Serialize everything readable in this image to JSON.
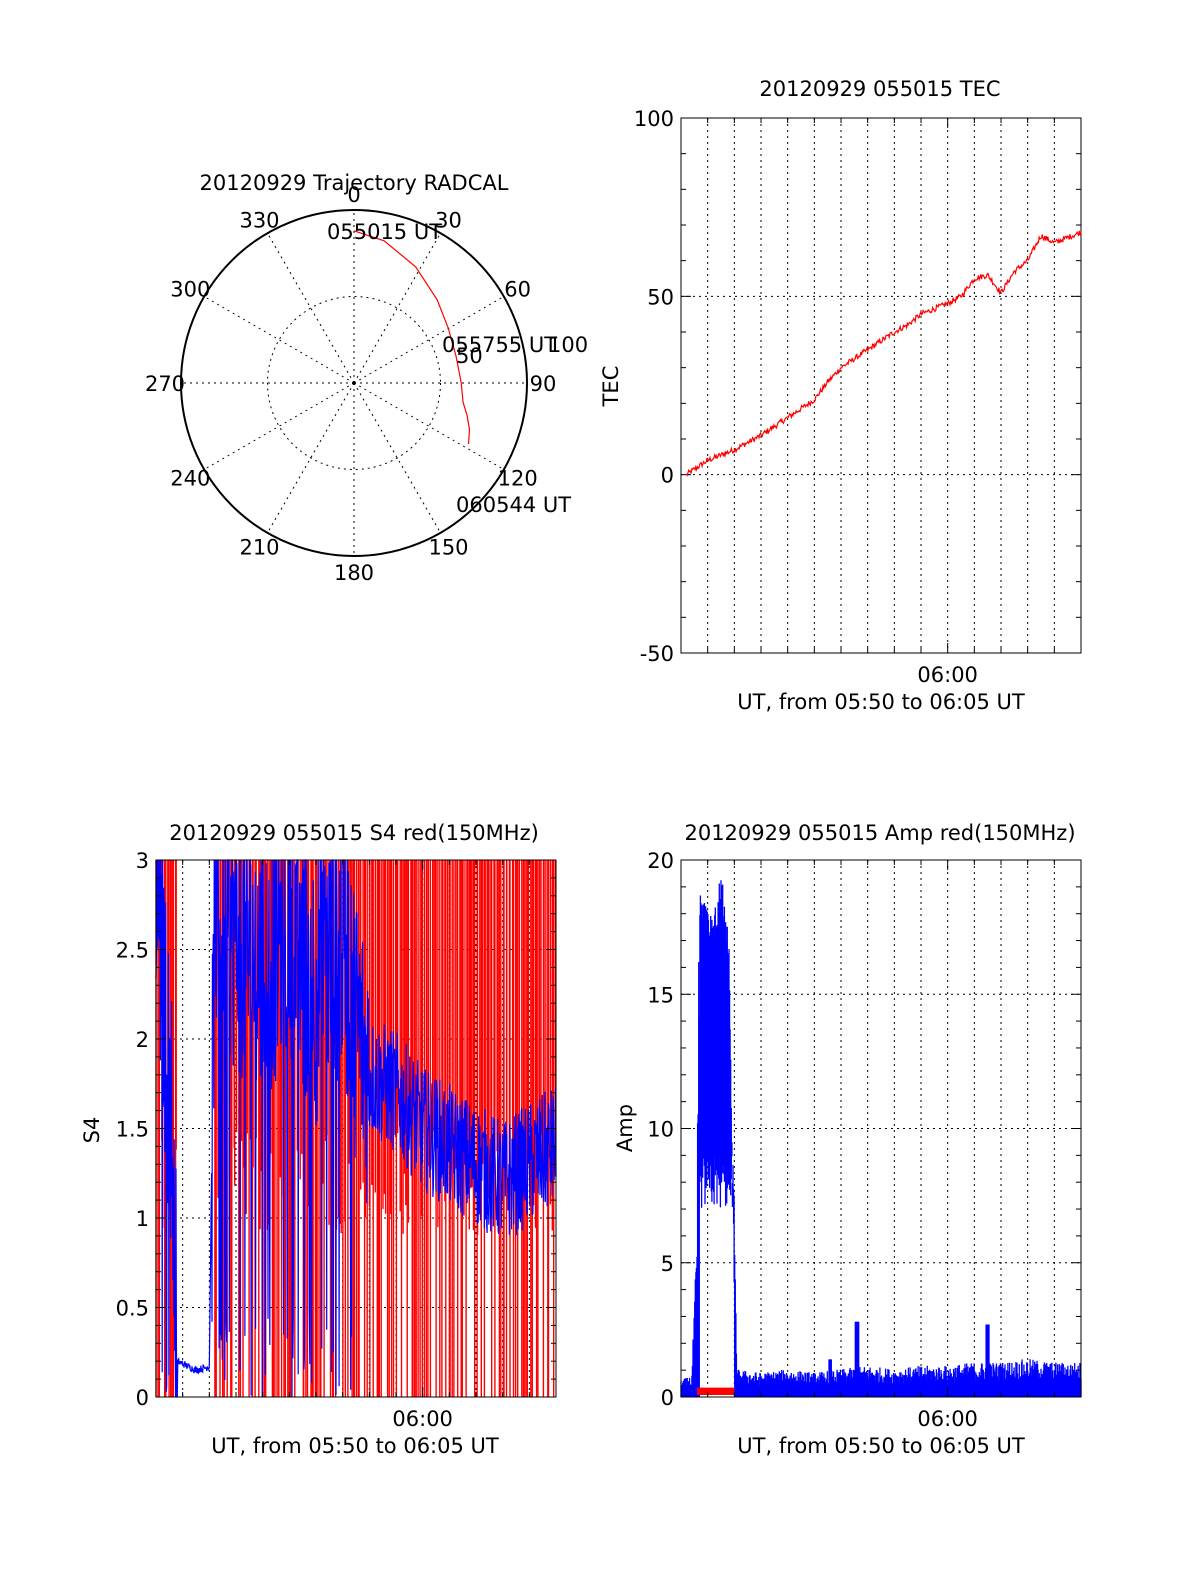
{
  "colors": {
    "red": "#ff0000",
    "blue": "#0000ff",
    "axis": "#000000",
    "background": "#ffffff"
  },
  "chart_data": [
    {
      "id": "trajectory",
      "type": "polar",
      "title": "20120929 Trajectory RADCAL",
      "angle_labels": [
        "0",
        "30",
        "60",
        "90",
        "120",
        "150",
        "180",
        "210",
        "240",
        "270",
        "300",
        "330"
      ],
      "radius_labels": [
        "50",
        "100"
      ],
      "rlim": [
        0,
        100
      ],
      "angle_direction": "clockwise from top",
      "grid": true,
      "series": [
        {
          "color": "red",
          "points": [
            {
              "az": 0,
              "r": 88
            },
            {
              "az": 12,
              "r": 84
            },
            {
              "az": 28,
              "r": 76
            },
            {
              "az": 45,
              "r": 68
            },
            {
              "az": 60,
              "r": 63
            },
            {
              "az": 75,
              "r": 61
            },
            {
              "az": 90,
              "r": 62
            },
            {
              "az": 100,
              "r": 64
            },
            {
              "az": 106,
              "r": 68
            },
            {
              "az": 112,
              "r": 72
            },
            {
              "az": 118,
              "r": 75
            }
          ]
        }
      ],
      "annotations": [
        "055015 UT",
        "055755 UT",
        "060544 UT"
      ]
    },
    {
      "id": "tec",
      "type": "line",
      "title": "20120929 055015 TEC",
      "xlabel": "UT, from 05:50 to 06:05 UT",
      "ylabel": "TEC",
      "xlim": [
        0,
        15
      ],
      "x_ticks": [
        {
          "x": 10,
          "label": "06:00"
        }
      ],
      "x_grid_minutes": [
        1,
        2,
        3,
        4,
        5,
        6,
        7,
        8,
        9,
        10,
        11,
        12,
        13,
        14
      ],
      "ylim": [
        -50,
        100
      ],
      "y_ticks": [
        "-50",
        "0",
        "50",
        "100"
      ],
      "grid": true,
      "series": [
        {
          "color": "red",
          "x": [
            0.2,
            1,
            2,
            3,
            4,
            5,
            5.5,
            6,
            7,
            8,
            8.5,
            9,
            10,
            10.5,
            11,
            11.5,
            12,
            12.5,
            13,
            13.5,
            14,
            15
          ],
          "y": [
            0,
            4,
            7,
            11,
            16,
            21,
            26,
            30,
            35,
            40,
            42,
            45,
            48,
            50,
            55,
            56,
            51,
            57,
            60,
            67,
            65,
            68
          ]
        }
      ]
    },
    {
      "id": "s4",
      "type": "line",
      "title": "20120929 055015 S4 red(150MHz)",
      "xlabel": "UT, from 05:50 to 06:05 UT",
      "ylabel": "S4",
      "xlim": [
        0,
        15
      ],
      "x_ticks": [
        {
          "x": 10,
          "label": "06:00"
        }
      ],
      "x_grid_minutes": [
        1,
        2,
        3,
        4,
        5,
        6,
        7,
        8,
        9,
        10,
        11,
        12,
        13,
        14
      ],
      "ylim": [
        0,
        3
      ],
      "y_ticks": [
        "0",
        "0.5",
        "1",
        "1.5",
        "2",
        "2.5",
        "3"
      ],
      "grid": true,
      "series": [
        {
          "color": "red",
          "description_values": {
            "min": 0,
            "max": 3
          }
        },
        {
          "color": "blue",
          "x": [
            0,
            0.3,
            0.6,
            0.8,
            1.5,
            2.0,
            2.2,
            3,
            4,
            5,
            6,
            7,
            7.5,
            8,
            9,
            10,
            11,
            12,
            13,
            14,
            15
          ],
          "y": [
            3,
            2.2,
            1.5,
            0.2,
            0.15,
            0.17,
            2.8,
            2.6,
            2.4,
            2.7,
            2.3,
            2.6,
            2.1,
            1.8,
            1.7,
            1.5,
            1.4,
            1.3,
            1.2,
            1.3,
            1.4
          ]
        }
      ]
    },
    {
      "id": "amp",
      "type": "line",
      "title": "20120929 055015 Amp red(150MHz)",
      "xlabel": "UT, from 05:50 to 06:05 UT",
      "ylabel": "Amp",
      "xlim": [
        0,
        15
      ],
      "x_ticks": [
        {
          "x": 10,
          "label": "06:00"
        }
      ],
      "x_grid_minutes": [
        1,
        2,
        3,
        4,
        5,
        6,
        7,
        8,
        9,
        10,
        11,
        12,
        13,
        14
      ],
      "ylim": [
        0,
        20
      ],
      "y_ticks": [
        "0",
        "5",
        "10",
        "15",
        "20"
      ],
      "grid": true,
      "series": [
        {
          "color": "red",
          "x_range": [
            0.6,
            2.0
          ],
          "level": 0.35
        },
        {
          "color": "blue",
          "x": [
            0,
            0.4,
            0.6,
            0.7,
            0.9,
            1.2,
            1.5,
            1.8,
            2.0,
            2.1,
            3,
            4,
            5,
            6,
            7,
            8,
            9,
            10,
            11,
            12,
            13,
            14,
            15
          ],
          "y": [
            0.5,
            0.6,
            4.8,
            19.3,
            18.5,
            17.8,
            19.8,
            17.1,
            5.0,
            0.8,
            0.7,
            0.8,
            0.7,
            0.8,
            0.9,
            0.8,
            0.9,
            0.9,
            1.0,
            1.0,
            1.1,
            1.0,
            1.0
          ]
        }
      ]
    }
  ]
}
